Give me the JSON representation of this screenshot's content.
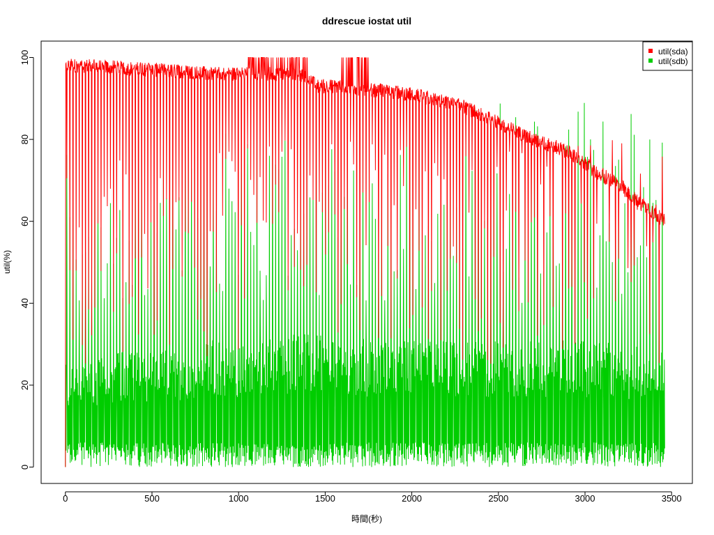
{
  "chart_data": {
    "type": "line",
    "title": "ddrescue iostat util",
    "xlabel": "時間(秒)",
    "ylabel": "util(%)",
    "xlim": [
      -140,
      3620
    ],
    "ylim": [
      -4,
      104
    ],
    "x_ticks": [
      "0",
      "500",
      "1000",
      "1500",
      "2000",
      "2500",
      "3000",
      "3500"
    ],
    "y_ticks": [
      "0",
      "20",
      "40",
      "60",
      "80",
      "100"
    ],
    "legend_position": "top-right",
    "grid": false,
    "series": [
      {
        "name": "util(sda)",
        "color": "#ff0000",
        "baseline_x": [
          0,
          100,
          300,
          500,
          700,
          900,
          1000,
          1100,
          1200,
          1300,
          1400,
          1450,
          1500,
          1600,
          1700,
          1800,
          2000,
          2200,
          2300,
          2500,
          2700,
          2900,
          3000,
          3100,
          3200,
          3300,
          3400,
          3460
        ],
        "baseline_y": [
          98,
          98,
          97.5,
          97,
          96.5,
          96,
          96,
          96,
          96,
          96,
          95,
          93,
          93,
          93,
          92,
          92,
          91,
          89,
          88,
          84,
          80,
          77,
          74,
          71,
          69,
          65,
          62,
          60
        ],
        "dip_range": [
          25,
          99
        ]
      },
      {
        "name": "util(sdb)",
        "color": "#00cd00",
        "dense_band_x": [
          0,
          200,
          400,
          600,
          800,
          1000,
          1200,
          1400,
          1500,
          1600,
          1800,
          2000,
          2500,
          3000,
          3460
        ],
        "dense_band_y": [
          25,
          27,
          29,
          29,
          31,
          31,
          32,
          33,
          33,
          32,
          31,
          31,
          31,
          31,
          29
        ],
        "peak_range": [
          40,
          91
        ],
        "min": 0
      }
    ]
  }
}
